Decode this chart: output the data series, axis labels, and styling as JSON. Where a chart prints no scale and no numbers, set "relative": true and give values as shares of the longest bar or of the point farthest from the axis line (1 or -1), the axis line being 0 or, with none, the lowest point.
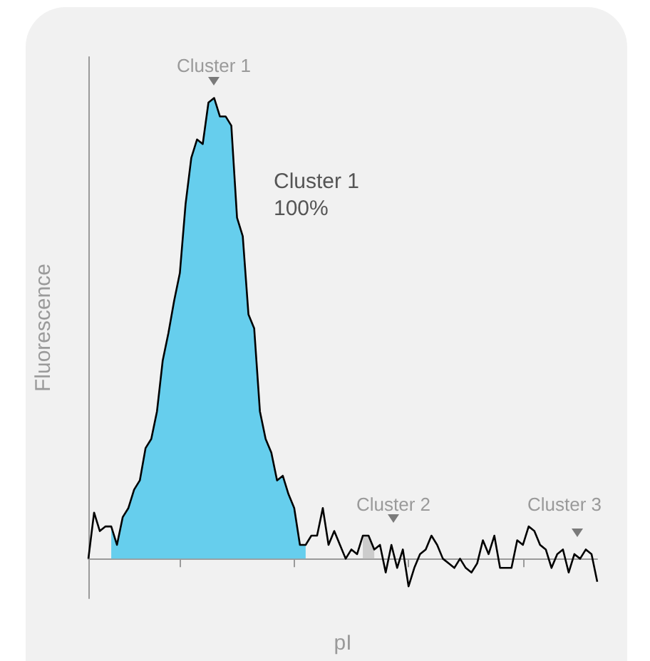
{
  "chart_data": {
    "type": "line",
    "relative": true,
    "xlabel": "pI",
    "ylabel": "Fluorescence",
    "marker": "none",
    "categories": [
      null,
      null,
      null,
      null,
      null,
      null,
      null,
      null,
      null,
      null,
      null,
      null,
      null,
      null,
      null,
      null,
      null,
      null,
      null,
      null,
      null,
      null,
      null,
      null,
      null,
      null,
      null,
      null,
      null,
      null,
      null,
      null,
      null,
      null,
      null,
      null,
      null,
      null,
      null,
      null,
      null,
      null,
      null,
      null,
      null,
      null,
      null,
      null,
      null,
      null,
      null,
      null,
      null,
      null,
      null,
      null,
      null,
      null,
      null,
      null,
      null,
      null,
      null,
      null,
      null,
      null,
      null,
      null,
      null,
      null,
      null,
      null,
      null,
      null,
      null,
      null,
      null,
      null,
      null,
      null,
      null,
      null,
      null,
      null,
      null,
      null,
      null,
      null,
      null,
      null
    ],
    "series": [
      {
        "type": "area",
        "color": "#66ceed",
        "values": [
          null,
          null,
          null,
          null,
          0.07,
          0.03,
          0.09,
          0.11,
          0.15,
          0.17,
          0.24,
          0.26,
          0.32,
          0.43,
          0.49,
          0.56,
          0.62,
          0.77,
          0.87,
          0.91,
          0.9,
          0.99,
          1,
          0.96,
          0.96,
          0.94,
          0.74,
          0.7,
          0.53,
          0.5,
          0.32,
          0.26,
          0.23,
          0.17,
          0.18,
          0.14,
          0.11,
          0.03,
          0.03,
          null,
          null,
          null,
          null,
          null,
          null,
          null,
          null,
          null,
          null,
          null,
          null,
          null,
          null,
          null,
          null,
          null,
          null,
          null,
          null,
          null,
          null,
          null,
          null,
          null,
          null,
          null,
          null,
          null,
          null,
          null,
          null,
          null,
          null,
          null,
          null,
          null,
          null,
          null,
          null,
          null,
          null,
          null,
          null,
          null,
          null,
          null,
          null,
          null,
          null,
          null
        ]
      },
      {
        "type": "area",
        "color": "#cccccc",
        "values": [
          null,
          null,
          null,
          null,
          null,
          null,
          null,
          null,
          null,
          null,
          null,
          null,
          null,
          null,
          null,
          null,
          null,
          null,
          null,
          null,
          null,
          null,
          null,
          null,
          null,
          null,
          null,
          null,
          null,
          null,
          null,
          null,
          null,
          null,
          null,
          null,
          null,
          null,
          null,
          null,
          null,
          null,
          null,
          null,
          null,
          null,
          null,
          null,
          0.05,
          0.05,
          0.02,
          null,
          null,
          null,
          null,
          null,
          null,
          null,
          null,
          null,
          null,
          null,
          null,
          null,
          null,
          null,
          null,
          null,
          null,
          null,
          null,
          null,
          null,
          null,
          null,
          null,
          null,
          null,
          null,
          null,
          null,
          null,
          null,
          null,
          null,
          null,
          null,
          null,
          null,
          null
        ]
      },
      {
        "color": "#000000",
        "values": [
          0,
          0.1,
          0.06,
          0.07,
          0.07,
          0.03,
          0.09,
          0.11,
          0.15,
          0.17,
          0.24,
          0.26,
          0.32,
          0.43,
          0.49,
          0.56,
          0.62,
          0.77,
          0.87,
          0.91,
          0.9,
          0.99,
          1,
          0.96,
          0.96,
          0.94,
          0.74,
          0.7,
          0.53,
          0.5,
          0.32,
          0.26,
          0.23,
          0.17,
          0.18,
          0.14,
          0.11,
          0.03,
          0.03,
          0.05,
          0.05,
          0.11,
          0.03,
          0.06,
          0.03,
          0,
          0.02,
          0.01,
          0.05,
          0.05,
          0.02,
          0.03,
          -0.03,
          0.03,
          -0.02,
          0.02,
          -0.06,
          -0.02,
          0.01,
          0.02,
          0.05,
          0.03,
          0,
          -0.01,
          -0.02,
          0,
          -0.02,
          -0.03,
          -0.01,
          0.04,
          0.01,
          0.05,
          -0.02,
          -0.02,
          -0.02,
          0.04,
          0.03,
          0.07,
          0.06,
          0.03,
          0.02,
          -0.02,
          0.01,
          0.02,
          -0.03,
          0.01,
          0,
          0.02,
          0.01,
          -0.05
        ]
      }
    ],
    "annotations": [
      "Cluster 1",
      "Cluster 1\n100%",
      "Cluster 2",
      "Cluster 3"
    ]
  }
}
